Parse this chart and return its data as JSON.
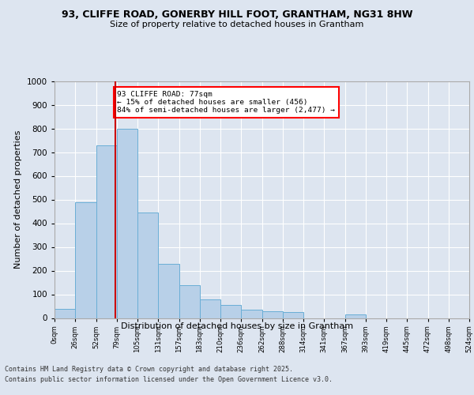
{
  "title1": "93, CLIFFE ROAD, GONERBY HILL FOOT, GRANTHAM, NG31 8HW",
  "title2": "Size of property relative to detached houses in Grantham",
  "xlabel": "Distribution of detached houses by size in Grantham",
  "ylabel": "Number of detached properties",
  "bin_edges": [
    0,
    26,
    52,
    79,
    105,
    131,
    157,
    183,
    210,
    236,
    262,
    288,
    314,
    341,
    367,
    393,
    419,
    445,
    472,
    498,
    524
  ],
  "bar_heights": [
    40,
    490,
    730,
    800,
    445,
    230,
    140,
    80,
    55,
    35,
    30,
    25,
    0,
    0,
    15,
    0,
    0,
    0,
    0,
    0
  ],
  "bar_color": "#b8d0e8",
  "bar_edge_color": "#6aaed6",
  "property_size": 77,
  "annotation_line1": "93 CLIFFE ROAD: 77sqm",
  "annotation_line2": "← 15% of detached houses are smaller (456)",
  "annotation_line3": "84% of semi-detached houses are larger (2,477) →",
  "vline_color": "#cc0000",
  "ylim": [
    0,
    1000
  ],
  "yticks": [
    0,
    100,
    200,
    300,
    400,
    500,
    600,
    700,
    800,
    900,
    1000
  ],
  "background_color": "#dde5f0",
  "grid_color": "#ffffff",
  "footer1": "Contains HM Land Registry data © Crown copyright and database right 2025.",
  "footer2": "Contains public sector information licensed under the Open Government Licence v3.0."
}
